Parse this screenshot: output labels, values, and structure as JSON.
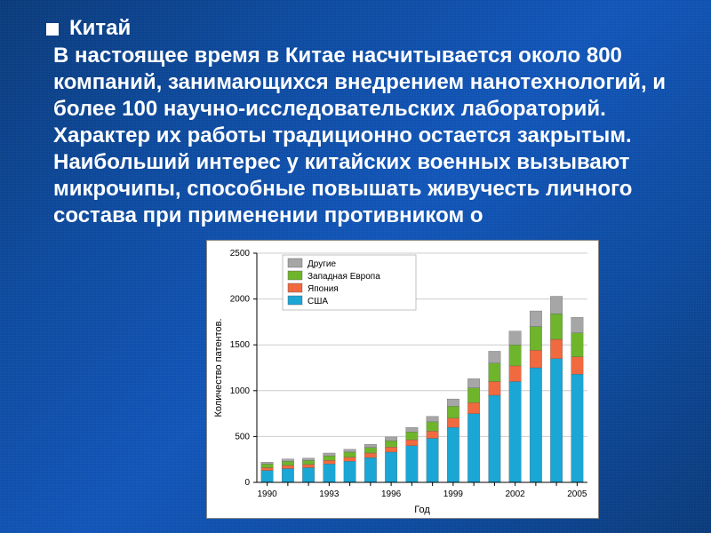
{
  "title": "Китай",
  "paragraph": "В настоящее время в Китае насчитывается около 800 компаний, занимающихся внедрением нанотехнологий, и более 100 научно-исследовательских лабораторий. Характер их работы традиционно остается закрытым. Наибольший интерес у китайских военных вызывают микрочипы, способные повышать живучесть личного состава при применении противником о",
  "slide_style": {
    "background_base": "#0d4a9e",
    "text_color": "#ffffff",
    "bullet_color": "#ffffff",
    "title_fontsize": 24,
    "para_fontsize": 24,
    "font_weight": 700
  },
  "chart": {
    "type": "stacked-bar",
    "y_label": "Количество патентов.",
    "x_label": "Год",
    "label_fontsize": 11,
    "tick_fontsize": 10,
    "legend_fontsize": 10,
    "background_color": "#ffffff",
    "axis_color": "#000000",
    "grid_color": "#cccccc",
    "ylim": [
      0,
      2500
    ],
    "ytick_step": 500,
    "yticks": [
      0,
      500,
      1000,
      1500,
      2000,
      2500
    ],
    "years": [
      1990,
      1991,
      1992,
      1993,
      1994,
      1995,
      1996,
      1997,
      1998,
      1999,
      2000,
      2001,
      2002,
      2003,
      2004,
      2005
    ],
    "xtick_years": [
      1990,
      1993,
      1996,
      1999,
      2002,
      2005
    ],
    "series": [
      {
        "name": "США",
        "color": "#1aa7d6"
      },
      {
        "name": "Япония",
        "color": "#f16a3f"
      },
      {
        "name": "Западная Европа",
        "color": "#6fb52c"
      },
      {
        "name": "Другие",
        "color": "#a6a6a6"
      }
    ],
    "legend_order": [
      "Другие",
      "Западная Европа",
      "Япония",
      "США"
    ],
    "data": {
      "1990": {
        "США": 130,
        "Япония": 30,
        "Западная Европа": 40,
        "Другие": 20
      },
      "1991": {
        "США": 150,
        "Япония": 35,
        "Западная Европа": 45,
        "Другие": 25
      },
      "1992": {
        "США": 160,
        "Япония": 35,
        "Западная Европа": 45,
        "Другие": 25
      },
      "1993": {
        "США": 200,
        "Япония": 40,
        "Западная Европа": 50,
        "Другие": 30
      },
      "1994": {
        "США": 230,
        "Япония": 45,
        "Западная Европа": 55,
        "Другие": 30
      },
      "1995": {
        "США": 270,
        "Япония": 50,
        "Западная Европа": 60,
        "Другие": 35
      },
      "1996": {
        "США": 330,
        "Япония": 55,
        "Западная Европа": 70,
        "Другие": 40
      },
      "1997": {
        "США": 400,
        "Япония": 65,
        "Западная Европа": 85,
        "Другие": 50
      },
      "1998": {
        "США": 480,
        "Япония": 80,
        "Западная Европа": 100,
        "Другие": 60
      },
      "1999": {
        "США": 600,
        "Япония": 100,
        "Западная Европа": 130,
        "Другие": 80
      },
      "2000": {
        "США": 750,
        "Япония": 120,
        "Западная Европа": 160,
        "Другие": 100
      },
      "2001": {
        "США": 950,
        "Япония": 150,
        "Западная Европа": 200,
        "Другие": 130
      },
      "2002": {
        "США": 1100,
        "Япония": 170,
        "Западная Европа": 230,
        "Другие": 150
      },
      "2003": {
        "США": 1250,
        "Япония": 190,
        "Западная Европа": 260,
        "Другие": 170
      },
      "2004": {
        "США": 1350,
        "Япония": 210,
        "Западная Европа": 280,
        "Другие": 190
      },
      "2005": {
        "США": 1180,
        "Япония": 190,
        "Западная Европа": 260,
        "Другие": 170
      }
    },
    "bar_width_ratio": 0.58
  }
}
